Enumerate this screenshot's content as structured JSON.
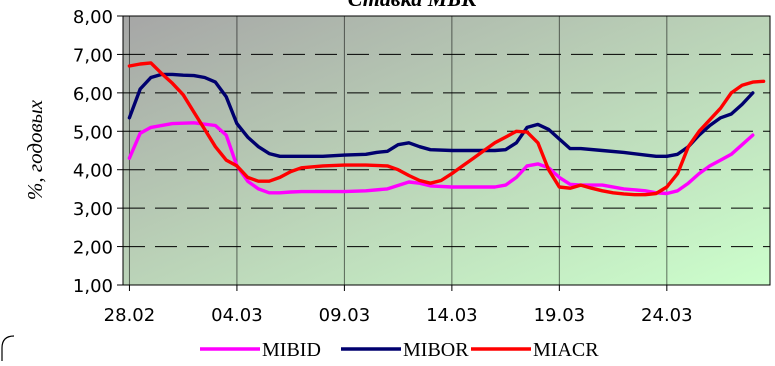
{
  "chart_data": {
    "type": "line",
    "title": "Ставка МБК",
    "ylabel": "%, годовых",
    "xlabel": "",
    "ylim": [
      1.0,
      8.0
    ],
    "y_ticks": [
      "1,00",
      "2,00",
      "3,00",
      "4,00",
      "5,00",
      "6,00",
      "7,00",
      "8,00"
    ],
    "x_ticks": [
      {
        "label": "28.02",
        "x": 0
      },
      {
        "label": "04.03",
        "x": 5
      },
      {
        "label": "09.03",
        "x": 10
      },
      {
        "label": "14.03",
        "x": 15
      },
      {
        "label": "19.03",
        "x": 20
      },
      {
        "label": "24.03",
        "x": 25
      }
    ],
    "xlim": [
      -0.3,
      29.8
    ],
    "grid": true,
    "legend_position": "bottom",
    "series": [
      {
        "name": "MIBID",
        "color": "#ff00ff",
        "points": [
          [
            0.0,
            4.3
          ],
          [
            0.5,
            4.95
          ],
          [
            1.0,
            5.1
          ],
          [
            2.0,
            5.2
          ],
          [
            3.0,
            5.22
          ],
          [
            4.0,
            5.15
          ],
          [
            4.5,
            4.9
          ],
          [
            5.0,
            4.1
          ],
          [
            5.5,
            3.7
          ],
          [
            6.0,
            3.5
          ],
          [
            6.5,
            3.4
          ],
          [
            7.0,
            3.4
          ],
          [
            7.5,
            3.42
          ],
          [
            8.0,
            3.43
          ],
          [
            9.0,
            3.43
          ],
          [
            10.0,
            3.43
          ],
          [
            11.0,
            3.45
          ],
          [
            12.0,
            3.5
          ],
          [
            13.0,
            3.68
          ],
          [
            13.5,
            3.65
          ],
          [
            14.0,
            3.58
          ],
          [
            15.0,
            3.55
          ],
          [
            16.0,
            3.55
          ],
          [
            17.0,
            3.55
          ],
          [
            17.5,
            3.6
          ],
          [
            18.0,
            3.8
          ],
          [
            18.5,
            4.1
          ],
          [
            19.0,
            4.15
          ],
          [
            19.5,
            4.05
          ],
          [
            20.0,
            3.8
          ],
          [
            20.5,
            3.62
          ],
          [
            21.0,
            3.6
          ],
          [
            22.0,
            3.6
          ],
          [
            23.0,
            3.5
          ],
          [
            24.0,
            3.45
          ],
          [
            24.5,
            3.4
          ],
          [
            25.0,
            3.38
          ],
          [
            25.5,
            3.45
          ],
          [
            26.0,
            3.65
          ],
          [
            26.5,
            3.9
          ],
          [
            27.0,
            4.1
          ],
          [
            27.5,
            4.25
          ],
          [
            28.0,
            4.4
          ],
          [
            28.5,
            4.65
          ],
          [
            29.0,
            4.9
          ]
        ]
      },
      {
        "name": "MIBOR",
        "color": "#00006e",
        "points": [
          [
            0.0,
            5.35
          ],
          [
            0.5,
            6.1
          ],
          [
            1.0,
            6.4
          ],
          [
            1.5,
            6.48
          ],
          [
            2.0,
            6.48
          ],
          [
            2.5,
            6.46
          ],
          [
            3.0,
            6.45
          ],
          [
            3.5,
            6.4
          ],
          [
            4.0,
            6.28
          ],
          [
            4.5,
            5.9
          ],
          [
            5.0,
            5.2
          ],
          [
            5.5,
            4.85
          ],
          [
            6.0,
            4.6
          ],
          [
            6.5,
            4.42
          ],
          [
            7.0,
            4.35
          ],
          [
            7.5,
            4.35
          ],
          [
            8.0,
            4.35
          ],
          [
            9.0,
            4.35
          ],
          [
            10.0,
            4.38
          ],
          [
            11.0,
            4.4
          ],
          [
            11.5,
            4.45
          ],
          [
            12.0,
            4.48
          ],
          [
            12.5,
            4.65
          ],
          [
            13.0,
            4.7
          ],
          [
            13.5,
            4.6
          ],
          [
            14.0,
            4.52
          ],
          [
            15.0,
            4.5
          ],
          [
            16.0,
            4.5
          ],
          [
            17.0,
            4.5
          ],
          [
            17.5,
            4.52
          ],
          [
            18.0,
            4.7
          ],
          [
            18.5,
            5.1
          ],
          [
            19.0,
            5.18
          ],
          [
            19.5,
            5.05
          ],
          [
            20.0,
            4.8
          ],
          [
            20.5,
            4.55
          ],
          [
            21.0,
            4.55
          ],
          [
            22.0,
            4.5
          ],
          [
            23.0,
            4.45
          ],
          [
            24.0,
            4.38
          ],
          [
            24.5,
            4.35
          ],
          [
            25.0,
            4.35
          ],
          [
            25.5,
            4.4
          ],
          [
            26.0,
            4.6
          ],
          [
            26.5,
            4.9
          ],
          [
            27.0,
            5.15
          ],
          [
            27.5,
            5.35
          ],
          [
            28.0,
            5.45
          ],
          [
            28.5,
            5.7
          ],
          [
            29.0,
            6.0
          ]
        ]
      },
      {
        "name": "MIACR",
        "color": "#ff0000",
        "points": [
          [
            0.0,
            6.7
          ],
          [
            0.5,
            6.75
          ],
          [
            1.0,
            6.78
          ],
          [
            1.5,
            6.5
          ],
          [
            2.0,
            6.25
          ],
          [
            2.5,
            5.95
          ],
          [
            3.0,
            5.5
          ],
          [
            3.5,
            5.05
          ],
          [
            4.0,
            4.6
          ],
          [
            4.5,
            4.25
          ],
          [
            5.0,
            4.1
          ],
          [
            5.5,
            3.8
          ],
          [
            6.0,
            3.7
          ],
          [
            6.5,
            3.7
          ],
          [
            7.0,
            3.8
          ],
          [
            7.5,
            3.95
          ],
          [
            8.0,
            4.05
          ],
          [
            9.0,
            4.1
          ],
          [
            10.0,
            4.12
          ],
          [
            11.0,
            4.12
          ],
          [
            12.0,
            4.1
          ],
          [
            12.5,
            4.0
          ],
          [
            13.0,
            3.85
          ],
          [
            13.5,
            3.72
          ],
          [
            14.0,
            3.65
          ],
          [
            14.5,
            3.72
          ],
          [
            15.0,
            3.9
          ],
          [
            15.5,
            4.1
          ],
          [
            16.0,
            4.3
          ],
          [
            16.5,
            4.5
          ],
          [
            17.0,
            4.7
          ],
          [
            17.5,
            4.85
          ],
          [
            18.0,
            5.0
          ],
          [
            18.5,
            4.98
          ],
          [
            19.0,
            4.7
          ],
          [
            19.5,
            4.0
          ],
          [
            20.0,
            3.55
          ],
          [
            20.5,
            3.52
          ],
          [
            21.0,
            3.6
          ],
          [
            21.5,
            3.52
          ],
          [
            22.0,
            3.45
          ],
          [
            22.5,
            3.4
          ],
          [
            23.0,
            3.37
          ],
          [
            23.5,
            3.35
          ],
          [
            24.0,
            3.35
          ],
          [
            24.5,
            3.38
          ],
          [
            25.0,
            3.55
          ],
          [
            25.5,
            3.9
          ],
          [
            26.0,
            4.6
          ],
          [
            26.5,
            5.0
          ],
          [
            27.0,
            5.3
          ],
          [
            27.5,
            5.6
          ],
          [
            28.0,
            6.0
          ],
          [
            28.5,
            6.2
          ],
          [
            29.0,
            6.28
          ],
          [
            29.5,
            6.3
          ]
        ]
      }
    ]
  }
}
